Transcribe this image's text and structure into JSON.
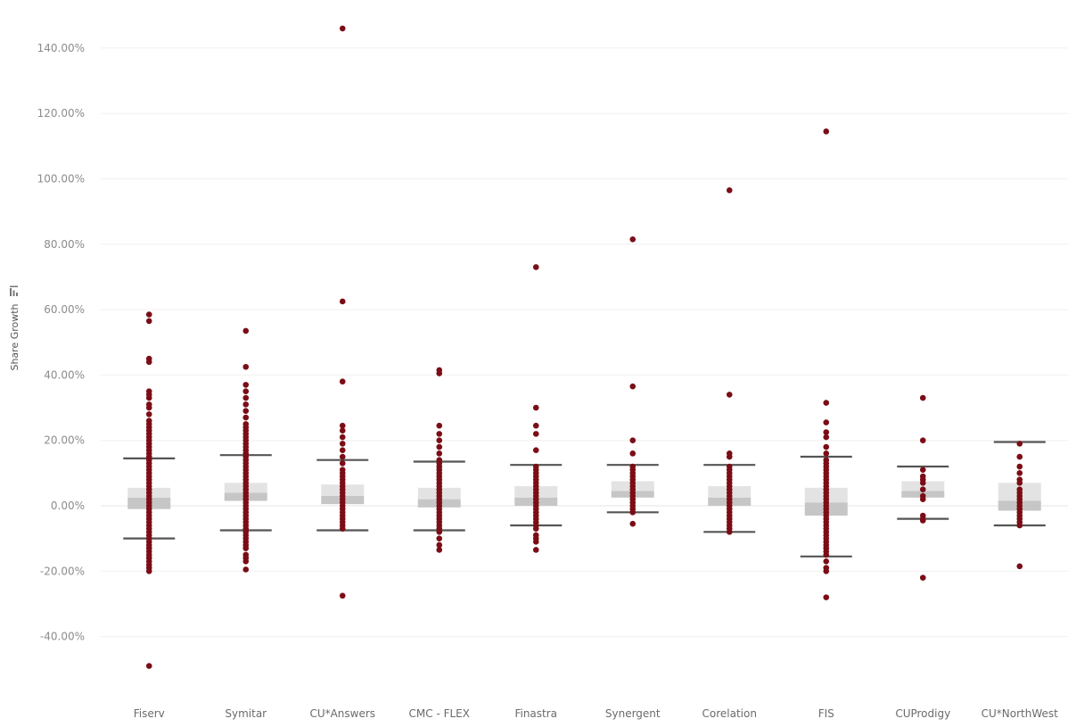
{
  "chart_data": {
    "type": "box_plot_with_points",
    "title": "",
    "ylabel": "Share Growth",
    "ylabel_icon": "sort-descending-icon",
    "xlabel": "",
    "ylim": [
      -0.58,
      1.5
    ],
    "yticks": [
      1.4,
      1.2,
      1.0,
      0.8,
      0.6,
      0.4,
      0.2,
      0.0,
      -0.2,
      -0.4
    ],
    "ytick_labels": [
      "140.00%",
      "120.00%",
      "100.00%",
      "80.00%",
      "60.00%",
      "40.00%",
      "20.00%",
      "0.00%",
      "-20.00%",
      "-40.00%"
    ],
    "grid": true,
    "legend": "none",
    "colors": {
      "points": "#7b0d16",
      "whisker": "#555555",
      "box_upper": "#e3e3e3",
      "box_lower": "#c6c6c6",
      "grid": "#f0f0f0",
      "zero_line": "#e6e6e6"
    },
    "categories": [
      "Fiserv",
      "Symitar",
      "CU*Answers",
      "CMC - FLEX",
      "Finastra",
      "Synergent",
      "Corelation",
      "FIS",
      "CUProdigy",
      "CU*NorthWest"
    ],
    "boxes": [
      {
        "category": "Fiserv",
        "whisker_low": -0.1,
        "q1": -0.01,
        "median": 0.025,
        "q3": 0.055,
        "whisker_high": 0.145
      },
      {
        "category": "Symitar",
        "whisker_low": -0.075,
        "q1": 0.015,
        "median": 0.04,
        "q3": 0.07,
        "whisker_high": 0.155
      },
      {
        "category": "CU*Answers",
        "whisker_low": -0.075,
        "q1": 0.005,
        "median": 0.03,
        "q3": 0.065,
        "whisker_high": 0.14
      },
      {
        "category": "CMC - FLEX",
        "whisker_low": -0.075,
        "q1": -0.005,
        "median": 0.02,
        "q3": 0.055,
        "whisker_high": 0.135
      },
      {
        "category": "Finastra",
        "whisker_low": -0.06,
        "q1": 0.0,
        "median": 0.025,
        "q3": 0.06,
        "whisker_high": 0.125
      },
      {
        "category": "Synergent",
        "whisker_low": -0.02,
        "q1": 0.025,
        "median": 0.045,
        "q3": 0.075,
        "whisker_high": 0.125
      },
      {
        "category": "Corelation",
        "whisker_low": -0.08,
        "q1": 0.0,
        "median": 0.025,
        "q3": 0.06,
        "whisker_high": 0.125
      },
      {
        "category": "FIS",
        "whisker_low": -0.155,
        "q1": -0.03,
        "median": 0.01,
        "q3": 0.055,
        "whisker_high": 0.15
      },
      {
        "category": "CUProdigy",
        "whisker_low": -0.04,
        "q1": 0.025,
        "median": 0.045,
        "q3": 0.075,
        "whisker_high": 0.12
      },
      {
        "category": "CU*NorthWest",
        "whisker_low": -0.06,
        "q1": -0.015,
        "median": 0.015,
        "q3": 0.07,
        "whisker_high": 0.195
      }
    ],
    "points": [
      {
        "category": "Fiserv",
        "values": [
          0.585,
          0.565,
          0.45,
          0.44,
          0.35,
          0.34,
          0.33,
          0.31,
          0.3,
          0.28,
          0.26,
          0.25,
          0.24,
          0.23,
          0.22,
          0.21,
          0.2,
          0.19,
          0.18,
          0.17,
          0.16,
          0.15,
          0.14,
          0.13,
          0.12,
          0.11,
          0.1,
          0.09,
          0.08,
          0.07,
          0.06,
          0.05,
          0.04,
          0.03,
          0.02,
          0.01,
          0.0,
          -0.01,
          -0.02,
          -0.03,
          -0.04,
          -0.05,
          -0.06,
          -0.07,
          -0.08,
          -0.09,
          -0.1,
          -0.11,
          -0.12,
          -0.13,
          -0.14,
          -0.15,
          -0.16,
          -0.17,
          -0.18,
          -0.19,
          -0.2,
          -0.49
        ]
      },
      {
        "category": "Symitar",
        "values": [
          0.535,
          0.425,
          0.37,
          0.35,
          0.33,
          0.31,
          0.29,
          0.27,
          0.25,
          0.24,
          0.23,
          0.22,
          0.21,
          0.2,
          0.19,
          0.18,
          0.17,
          0.16,
          0.15,
          0.14,
          0.13,
          0.12,
          0.11,
          0.1,
          0.09,
          0.08,
          0.07,
          0.06,
          0.05,
          0.04,
          0.03,
          0.02,
          0.01,
          0.0,
          -0.01,
          -0.02,
          -0.03,
          -0.04,
          -0.05,
          -0.06,
          -0.07,
          -0.08,
          -0.09,
          -0.1,
          -0.11,
          -0.12,
          -0.13,
          -0.15,
          -0.16,
          -0.17,
          -0.195
        ]
      },
      {
        "category": "CU*Answers",
        "values": [
          1.46,
          0.625,
          0.38,
          0.245,
          0.23,
          0.21,
          0.19,
          0.17,
          0.15,
          0.13,
          0.11,
          0.1,
          0.09,
          0.08,
          0.07,
          0.06,
          0.05,
          0.04,
          0.03,
          0.02,
          0.01,
          0.0,
          -0.01,
          -0.02,
          -0.03,
          -0.04,
          -0.05,
          -0.06,
          -0.07,
          -0.275
        ]
      },
      {
        "category": "CMC - FLEX",
        "values": [
          0.415,
          0.405,
          0.245,
          0.22,
          0.2,
          0.18,
          0.16,
          0.14,
          0.13,
          0.12,
          0.11,
          0.1,
          0.09,
          0.08,
          0.07,
          0.06,
          0.05,
          0.04,
          0.03,
          0.02,
          0.01,
          0.0,
          -0.01,
          -0.02,
          -0.03,
          -0.04,
          -0.05,
          -0.06,
          -0.07,
          -0.08,
          -0.1,
          -0.12,
          -0.135
        ]
      },
      {
        "category": "Finastra",
        "values": [
          0.73,
          0.3,
          0.245,
          0.22,
          0.17,
          0.12,
          0.11,
          0.1,
          0.09,
          0.08,
          0.07,
          0.06,
          0.05,
          0.04,
          0.03,
          0.02,
          0.01,
          0.0,
          -0.01,
          -0.02,
          -0.03,
          -0.04,
          -0.05,
          -0.06,
          -0.07,
          -0.09,
          -0.1,
          -0.11,
          -0.135
        ]
      },
      {
        "category": "Synergent",
        "values": [
          0.815,
          0.365,
          0.2,
          0.16,
          0.12,
          0.11,
          0.1,
          0.09,
          0.08,
          0.07,
          0.06,
          0.05,
          0.04,
          0.03,
          0.02,
          0.01,
          0.0,
          -0.01,
          -0.02,
          -0.055
        ]
      },
      {
        "category": "Corelation",
        "values": [
          0.965,
          0.34,
          0.16,
          0.15,
          0.12,
          0.11,
          0.1,
          0.09,
          0.08,
          0.07,
          0.06,
          0.05,
          0.04,
          0.03,
          0.02,
          0.01,
          0.0,
          -0.01,
          -0.02,
          -0.03,
          -0.04,
          -0.05,
          -0.06,
          -0.07,
          -0.08
        ]
      },
      {
        "category": "FIS",
        "values": [
          1.145,
          0.315,
          0.255,
          0.225,
          0.21,
          0.18,
          0.16,
          0.14,
          0.13,
          0.12,
          0.11,
          0.1,
          0.09,
          0.08,
          0.07,
          0.06,
          0.05,
          0.04,
          0.03,
          0.02,
          0.01,
          0.0,
          -0.01,
          -0.02,
          -0.03,
          -0.04,
          -0.05,
          -0.06,
          -0.07,
          -0.08,
          -0.09,
          -0.1,
          -0.11,
          -0.12,
          -0.13,
          -0.14,
          -0.15,
          -0.17,
          -0.19,
          -0.2,
          -0.28
        ]
      },
      {
        "category": "CUProdigy",
        "values": [
          0.33,
          0.2,
          0.11,
          0.09,
          0.08,
          0.07,
          0.05,
          0.03,
          0.02,
          -0.03,
          -0.04,
          -0.045,
          -0.22
        ]
      },
      {
        "category": "CU*NorthWest",
        "values": [
          0.19,
          0.15,
          0.12,
          0.1,
          0.08,
          0.07,
          0.05,
          0.04,
          0.03,
          0.02,
          0.01,
          0.0,
          -0.01,
          -0.02,
          -0.03,
          -0.04,
          -0.05,
          -0.06,
          -0.185
        ]
      }
    ]
  }
}
